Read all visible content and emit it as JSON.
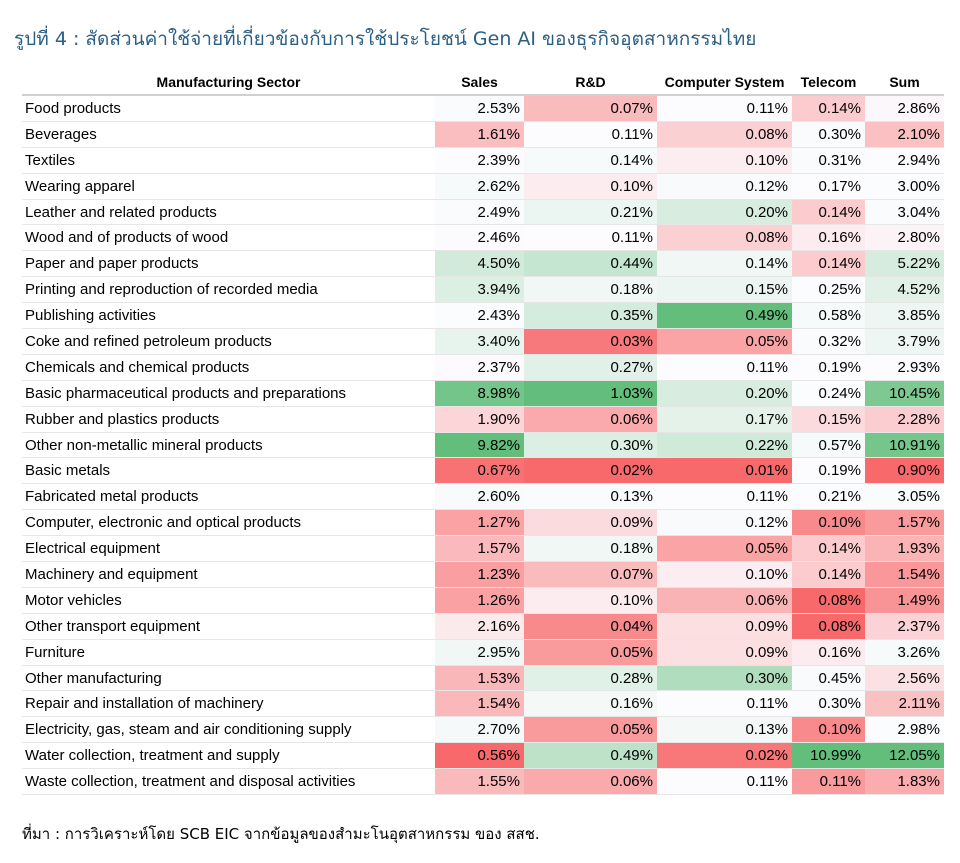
{
  "title": "รูปที่ 4 : สัดส่วนค่าใช้จ่ายที่เกี่ยวข้องกับการใช้ประโยชน์ Gen AI ของธุรกิจอุตสาหกรรมไทย",
  "source": "ที่มา : การวิเคราะห์โดย SCB EIC จากข้อมูลของสำมะโนอุตสาหกรรม ของ สสช.",
  "chart_data": {
    "type": "table",
    "columns": [
      "Manufacturing Sector",
      "Sales",
      "R&D",
      "Computer System",
      "Telecom",
      "Sum"
    ],
    "rows": [
      {
        "sector": "Food products",
        "values": [
          "2.53%",
          "0.07%",
          "0.11%",
          "0.14%",
          "2.86%"
        ]
      },
      {
        "sector": "Beverages",
        "values": [
          "1.61%",
          "0.11%",
          "0.08%",
          "0.30%",
          "2.10%"
        ]
      },
      {
        "sector": "Textiles",
        "values": [
          "2.39%",
          "0.14%",
          "0.10%",
          "0.31%",
          "2.94%"
        ]
      },
      {
        "sector": "Wearing apparel",
        "values": [
          "2.62%",
          "0.10%",
          "0.12%",
          "0.17%",
          "3.00%"
        ]
      },
      {
        "sector": "Leather and related products",
        "values": [
          "2.49%",
          "0.21%",
          "0.20%",
          "0.14%",
          "3.04%"
        ]
      },
      {
        "sector": "Wood and of products of wood",
        "values": [
          "2.46%",
          "0.11%",
          "0.08%",
          "0.16%",
          "2.80%"
        ]
      },
      {
        "sector": "Paper and paper products",
        "values": [
          "4.50%",
          "0.44%",
          "0.14%",
          "0.14%",
          "5.22%"
        ]
      },
      {
        "sector": "Printing and reproduction of recorded media",
        "values": [
          "3.94%",
          "0.18%",
          "0.15%",
          "0.25%",
          "4.52%"
        ]
      },
      {
        "sector": "Publishing activities",
        "values": [
          "2.43%",
          "0.35%",
          "0.49%",
          "0.58%",
          "3.85%"
        ]
      },
      {
        "sector": "Coke and refined petroleum products",
        "values": [
          "3.40%",
          "0.03%",
          "0.05%",
          "0.32%",
          "3.79%"
        ]
      },
      {
        "sector": "Chemicals and chemical products",
        "values": [
          "2.37%",
          "0.27%",
          "0.11%",
          "0.19%",
          "2.93%"
        ]
      },
      {
        "sector": "Basic pharmaceutical products and preparations",
        "values": [
          "8.98%",
          "1.03%",
          "0.20%",
          "0.24%",
          "10.45%"
        ]
      },
      {
        "sector": "Rubber and plastics products",
        "values": [
          "1.90%",
          "0.06%",
          "0.17%",
          "0.15%",
          "2.28%"
        ]
      },
      {
        "sector": "Other non-metallic mineral products",
        "values": [
          "9.82%",
          "0.30%",
          "0.22%",
          "0.57%",
          "10.91%"
        ]
      },
      {
        "sector": "Basic metals",
        "values": [
          "0.67%",
          "0.02%",
          "0.01%",
          "0.19%",
          "0.90%"
        ]
      },
      {
        "sector": "Fabricated metal products",
        "values": [
          "2.60%",
          "0.13%",
          "0.11%",
          "0.21%",
          "3.05%"
        ]
      },
      {
        "sector": "Computer, electronic and optical products",
        "values": [
          "1.27%",
          "0.09%",
          "0.12%",
          "0.10%",
          "1.57%"
        ]
      },
      {
        "sector": "Electrical equipment",
        "values": [
          "1.57%",
          "0.18%",
          "0.05%",
          "0.14%",
          "1.93%"
        ]
      },
      {
        "sector": "Machinery and equipment",
        "values": [
          "1.23%",
          "0.07%",
          "0.10%",
          "0.14%",
          "1.54%"
        ]
      },
      {
        "sector": "Motor vehicles",
        "values": [
          "1.26%",
          "0.10%",
          "0.06%",
          "0.08%",
          "1.49%"
        ]
      },
      {
        "sector": "Other transport equipment",
        "values": [
          "2.16%",
          "0.04%",
          "0.09%",
          "0.08%",
          "2.37%"
        ]
      },
      {
        "sector": "Furniture",
        "values": [
          "2.95%",
          "0.05%",
          "0.09%",
          "0.16%",
          "3.26%"
        ]
      },
      {
        "sector": "Other manufacturing",
        "values": [
          "1.53%",
          "0.28%",
          "0.30%",
          "0.45%",
          "2.56%"
        ]
      },
      {
        "sector": "Repair and installation of machinery",
        "values": [
          "1.54%",
          "0.16%",
          "0.11%",
          "0.30%",
          "2.11%"
        ]
      },
      {
        "sector": "Electricity, gas, steam and air conditioning supply",
        "values": [
          "2.70%",
          "0.05%",
          "0.13%",
          "0.10%",
          "2.98%"
        ]
      },
      {
        "sector": "Water collection, treatment and supply",
        "values": [
          "0.56%",
          "0.49%",
          "0.02%",
          "10.99%",
          "12.05%"
        ]
      },
      {
        "sector": "Waste collection, treatment and disposal activities",
        "values": [
          "1.55%",
          "0.06%",
          "0.11%",
          "0.11%",
          "1.83%"
        ]
      }
    ],
    "color_scale": {
      "low": "#f8696b",
      "mid": "#fcfcff",
      "high": "#63be7b"
    }
  }
}
